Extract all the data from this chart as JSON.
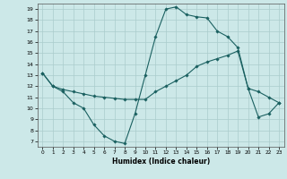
{
  "title": "",
  "xlabel": "Humidex (Indice chaleur)",
  "bg_color": "#cce8e8",
  "grid_color": "#aacccc",
  "line_color": "#1a6060",
  "xlim": [
    -0.5,
    23.5
  ],
  "ylim": [
    6.5,
    19.5
  ],
  "xticks": [
    0,
    1,
    2,
    3,
    4,
    5,
    6,
    7,
    8,
    9,
    10,
    11,
    12,
    13,
    14,
    15,
    16,
    17,
    18,
    19,
    20,
    21,
    22,
    23
  ],
  "yticks": [
    7,
    8,
    9,
    10,
    11,
    12,
    13,
    14,
    15,
    16,
    17,
    18,
    19
  ],
  "line1_x": [
    0,
    1,
    2,
    3,
    4,
    5,
    6,
    7,
    8,
    9,
    10,
    11,
    12,
    13,
    14,
    15,
    16,
    17,
    18,
    19,
    20,
    21,
    22,
    23
  ],
  "line1_y": [
    13.2,
    12.0,
    11.5,
    10.5,
    10.0,
    8.5,
    7.5,
    7.0,
    6.8,
    9.5,
    13.0,
    16.5,
    19.0,
    19.2,
    18.5,
    18.3,
    18.2,
    17.0,
    16.5,
    15.5,
    11.8,
    9.2,
    9.5,
    10.5
  ],
  "line2_x": [
    0,
    1,
    2,
    3,
    4,
    5,
    6,
    7,
    8,
    9,
    10,
    11,
    12,
    13,
    14,
    15,
    16,
    17,
    18,
    19,
    20,
    21,
    22,
    23
  ],
  "line2_y": [
    13.2,
    12.0,
    11.7,
    11.5,
    11.3,
    11.1,
    11.0,
    10.9,
    10.8,
    10.8,
    10.8,
    11.5,
    12.0,
    12.5,
    13.0,
    13.8,
    14.2,
    14.5,
    14.8,
    15.2,
    11.8,
    11.5,
    11.0,
    10.5
  ]
}
